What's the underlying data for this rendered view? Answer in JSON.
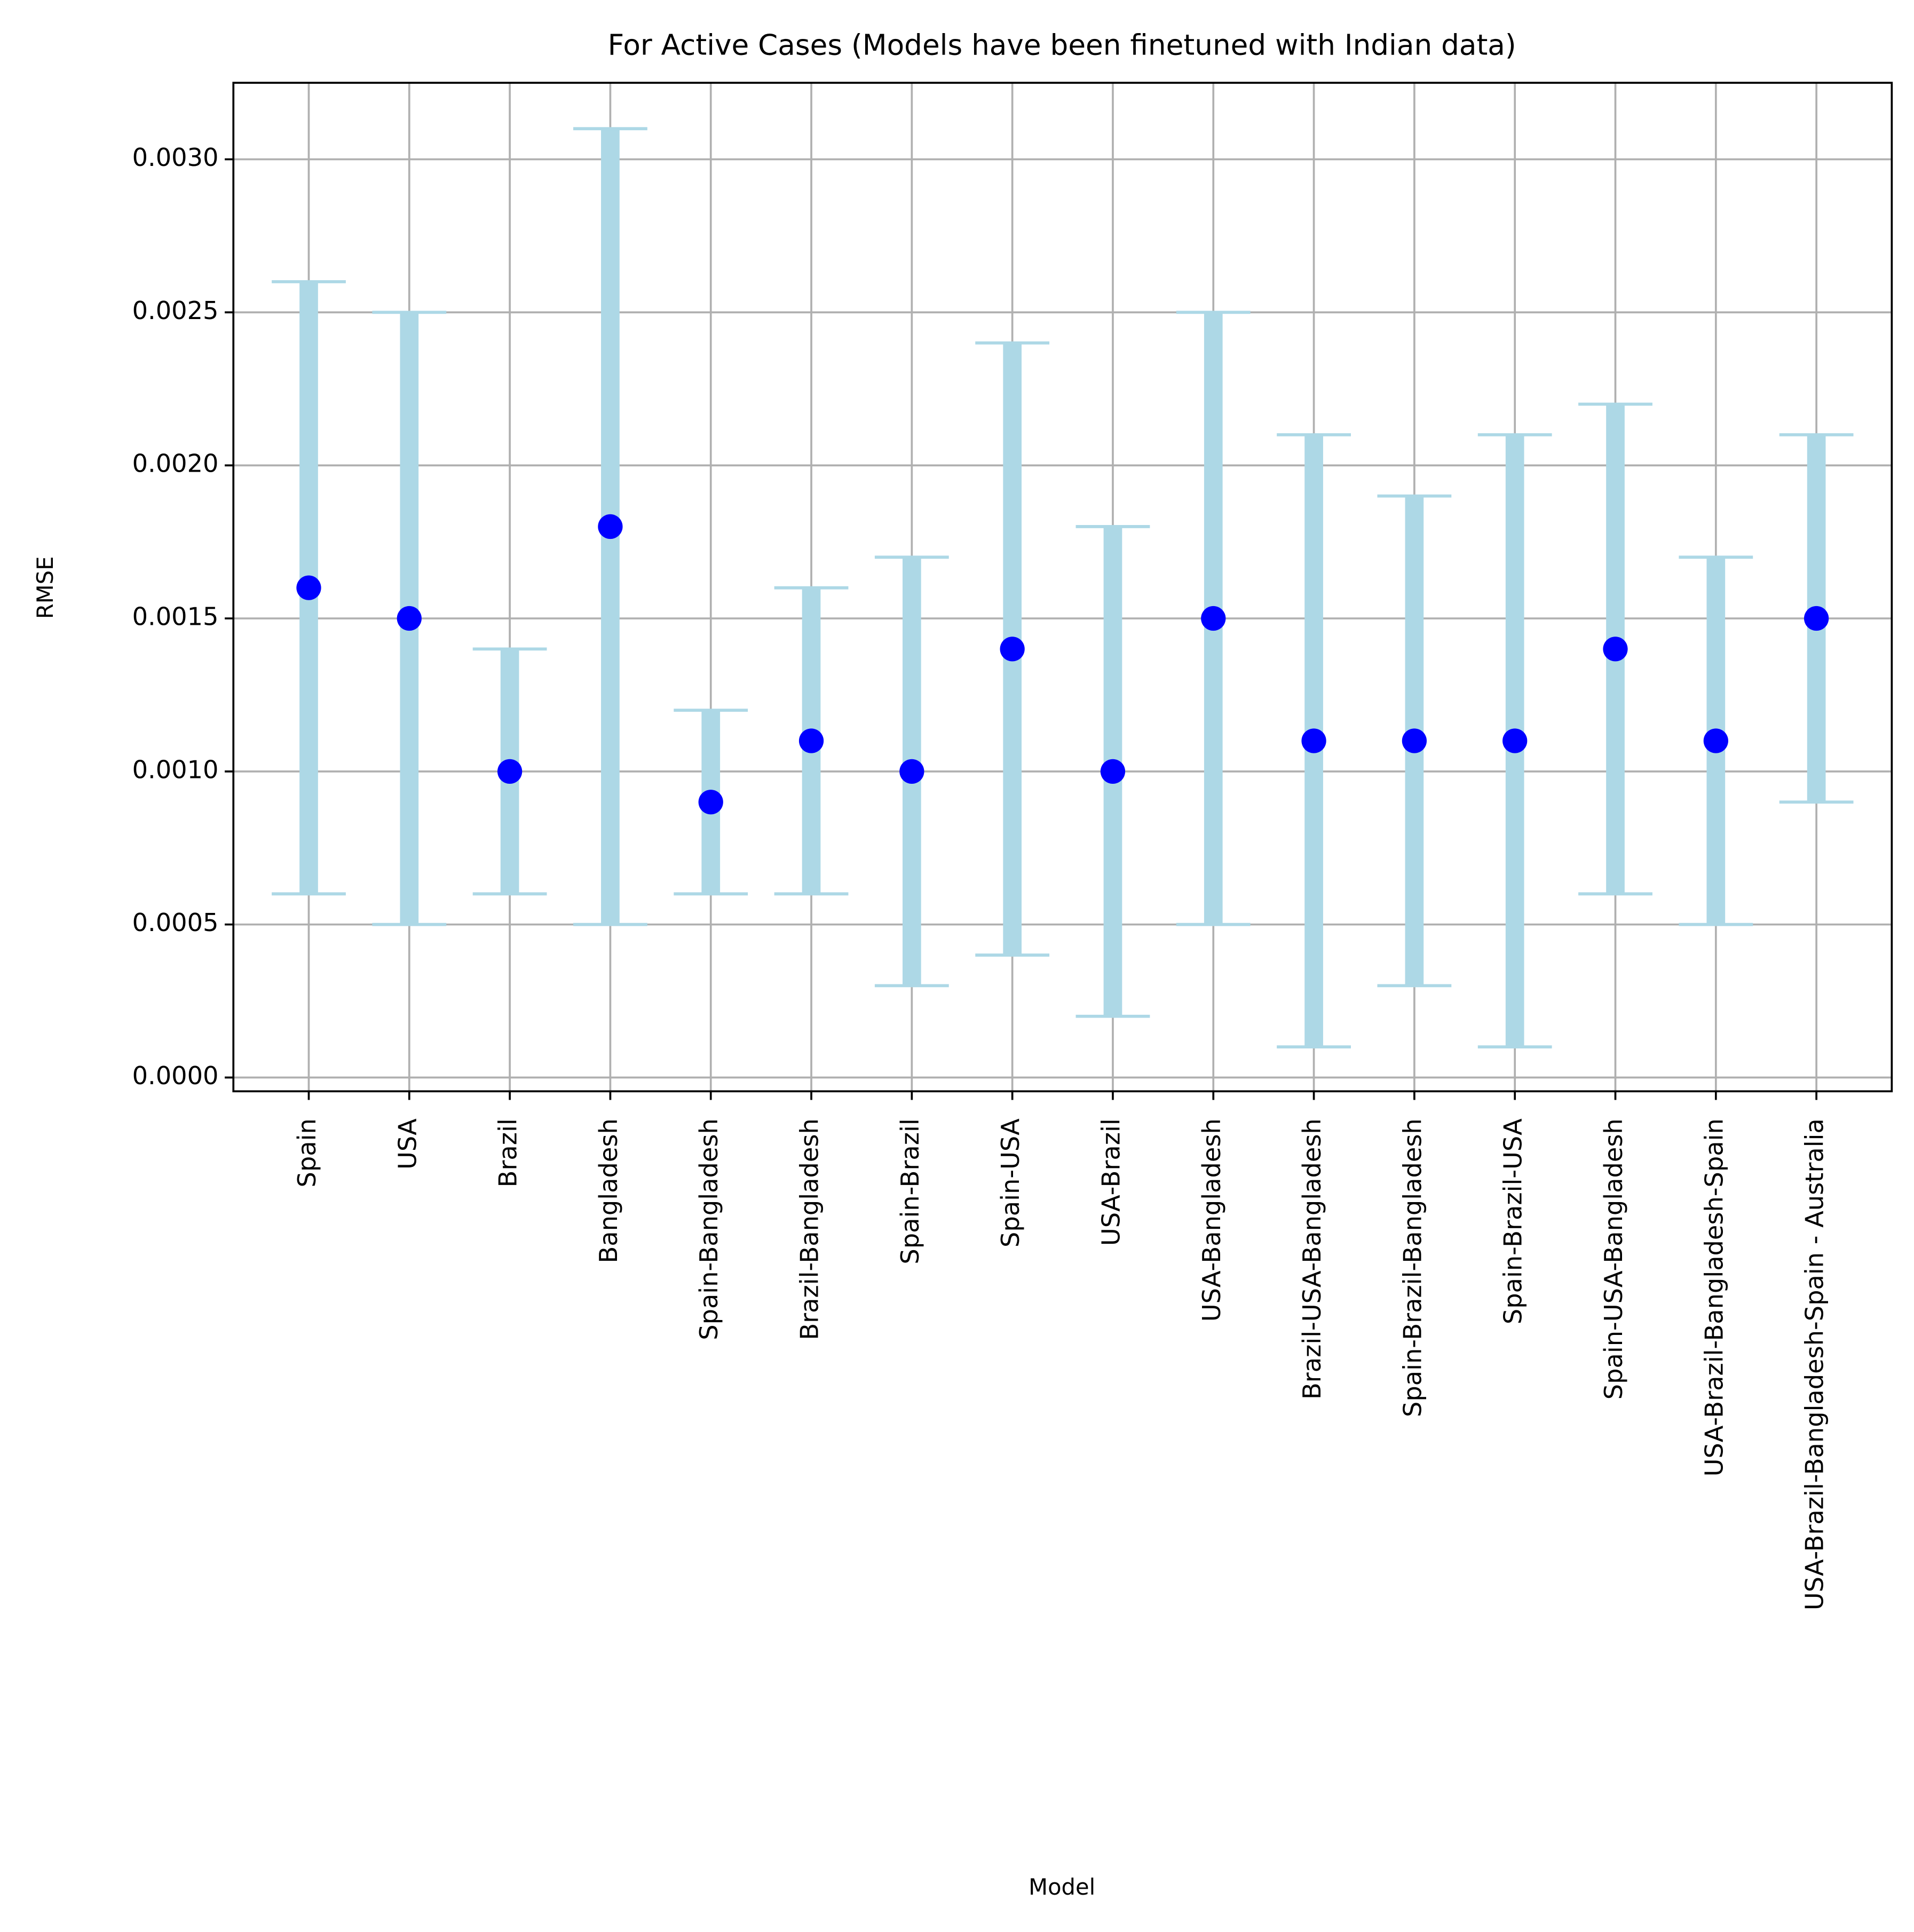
{
  "chart_data": {
    "type": "errorbar",
    "title": "For Active Cases (Models have been finetuned with Indian data)",
    "x_label": "Model",
    "y_label": "RMSE",
    "categories": [
      "Spain",
      "USA",
      "Brazil",
      "Bangladesh",
      "Spain-Bangladesh",
      "Brazil-Bangladesh",
      "Spain-Brazil",
      "Spain-USA",
      "USA-Brazil",
      "USA-Bangladesh",
      "Brazil-USA-Bangladesh",
      "Spain-Brazil-Bangladesh",
      "Spain-Brazil-USA",
      "Spain-USA-Bangladesh",
      "USA-Brazil-Bangladesh-Spain",
      "USA-Brazil-Bangladesh-Spain - Australia"
    ],
    "values": [
      0.0016,
      0.0015,
      0.001,
      0.0018,
      0.0009,
      0.0011,
      0.001,
      0.0014,
      0.001,
      0.0015,
      0.0011,
      0.0011,
      0.0011,
      0.0014,
      0.0011,
      0.0015
    ],
    "errors": [
      0.001,
      0.001,
      0.0004,
      0.0013,
      0.0003,
      0.0005,
      0.0007,
      0.001,
      0.0008,
      0.001,
      0.001,
      0.0008,
      0.001,
      0.0008,
      0.0006,
      0.0006
    ],
    "color": "#0000ff",
    "error_color": "#add8e6",
    "ylim": [
      -4.5e-05,
      0.00325
    ],
    "yticks": [
      {
        "value": 0,
        "label": "0.0000"
      },
      {
        "value": 0.0005,
        "label": "0.0005"
      },
      {
        "value": 0.001,
        "label": "0.0010"
      },
      {
        "value": 0.0015,
        "label": "0.0015"
      },
      {
        "value": 0.002,
        "label": "0.0020"
      },
      {
        "value": 0.0025,
        "label": "0.0025"
      },
      {
        "value": 0.003,
        "label": "0.0030"
      }
    ],
    "grid": true
  }
}
